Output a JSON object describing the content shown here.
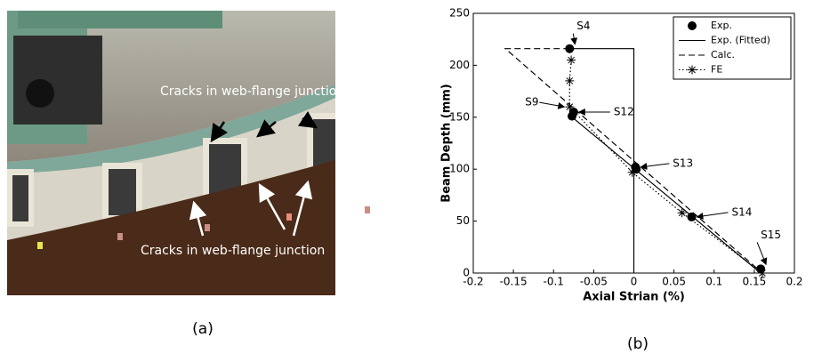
{
  "photo": {
    "labels": [
      "Cracks in web-flange junction",
      "Cracks in web-flange junction"
    ],
    "caption": "(a)"
  },
  "chart_data": {
    "type": "line",
    "x_label": "Axial Strian (%)",
    "y_label": "Beam Depth (mm)",
    "xlim": [
      -0.2,
      0.2
    ],
    "xticks": [
      -0.2,
      -0.15,
      -0.1,
      -0.05,
      0,
      0.05,
      0.1,
      0.15,
      0.2
    ],
    "ylim": [
      0,
      250
    ],
    "yticks": [
      0,
      50,
      100,
      150,
      200,
      250
    ],
    "grid": false,
    "legend": "upper right",
    "series": [
      {
        "name": "Exp.",
        "color": "#000000",
        "style": "markers",
        "x": [
          -0.08,
          -0.075,
          -0.077,
          0.002,
          0.003,
          0.072,
          0.158
        ],
        "values": [
          216,
          155,
          151,
          102,
          100,
          54,
          4
        ]
      },
      {
        "name": "Exp. (Fitted)",
        "color": "#000000",
        "style": "solid",
        "x": [
          0,
          0,
          -0.08,
          null,
          -0.08,
          0.158
        ],
        "values": [
          0,
          216,
          216,
          null,
          152,
          0
        ]
      },
      {
        "name": "Calc.",
        "color": "#000000",
        "style": "dashed",
        "x": [
          -0.08,
          -0.16,
          0.16
        ],
        "values": [
          216,
          216,
          0
        ]
      },
      {
        "name": "FE",
        "color": "#000000",
        "style": "dotted-star",
        "x": [
          -0.078,
          -0.08,
          -0.08,
          -0.002,
          0.06,
          0.16
        ],
        "values": [
          205,
          185,
          160,
          97,
          58,
          0
        ]
      }
    ],
    "annotations": [
      "S4",
      "S9",
      "S12",
      "S13",
      "S14",
      "S15"
    ]
  },
  "caption_b": "(b)"
}
